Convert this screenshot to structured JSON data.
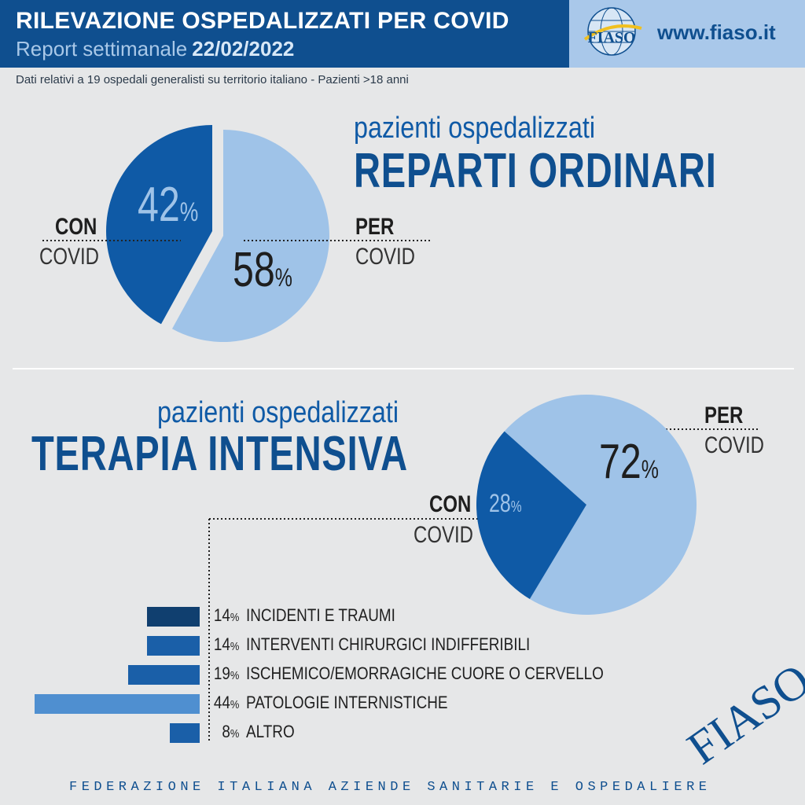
{
  "header": {
    "title": "RILEVAZIONE OSPEDALIZZATI PER COVID",
    "subtitle_prefix": "Report settimanale",
    "date": "22/02/2022",
    "website": "www.fiaso.it",
    "logo_text": "FIASO"
  },
  "subline": "Dati relativi a 19 ospedali generalisti su territorio italiano - Pazienti >18 anni",
  "section1": {
    "subtitle": "pazienti ospedalizzati",
    "title": "REPARTI ORDINARI",
    "con_label_bold": "CON",
    "con_label": "COVID",
    "per_label_bold": "PER",
    "per_label": "COVID"
  },
  "section2": {
    "subtitle": "pazienti ospedalizzati",
    "title": "TERAPIA INTENSIVA",
    "con_label_bold": "CON",
    "con_label": "COVID",
    "per_label_bold": "PER",
    "per_label": "COVID"
  },
  "footer": "FEDERAZIONE ITALIANA AZIENDE SANITARIE E OSPEDALIERE",
  "watermark": "FIASO",
  "colors": {
    "dark_blue": "#0f5aa6",
    "light_blue": "#9fc3e8",
    "bar_dark": "#103f6f",
    "bar_mid": "#1a5fa8",
    "bar_light": "#4f8fd0"
  },
  "chart_data": [
    {
      "type": "pie",
      "title": "REPARTI ORDINARI",
      "slices": [
        {
          "label": "CON COVID",
          "value": 42,
          "display": "42"
        },
        {
          "label": "PER COVID",
          "value": 58,
          "display": "58"
        }
      ],
      "unit": "%"
    },
    {
      "type": "pie",
      "title": "TERAPIA INTENSIVA",
      "slices": [
        {
          "label": "CON COVID",
          "value": 28,
          "display": "28"
        },
        {
          "label": "PER COVID",
          "value": 72,
          "display": "72"
        }
      ],
      "unit": "%"
    },
    {
      "type": "bar",
      "orientation": "horizontal",
      "categories": [
        "INCIDENTI E TRAUMI",
        "INTERVENTI CHIRURGICI INDIFFERIBILI",
        "ISCHEMICO/EMORRAGICHE CUORE O CERVELLO",
        "PATOLOGIE INTERNISTICHE",
        "ALTRO"
      ],
      "values": [
        14,
        14,
        19,
        44,
        8
      ],
      "value_labels": [
        "14",
        "14",
        "19",
        "44",
        "8"
      ],
      "unit": "%"
    }
  ]
}
